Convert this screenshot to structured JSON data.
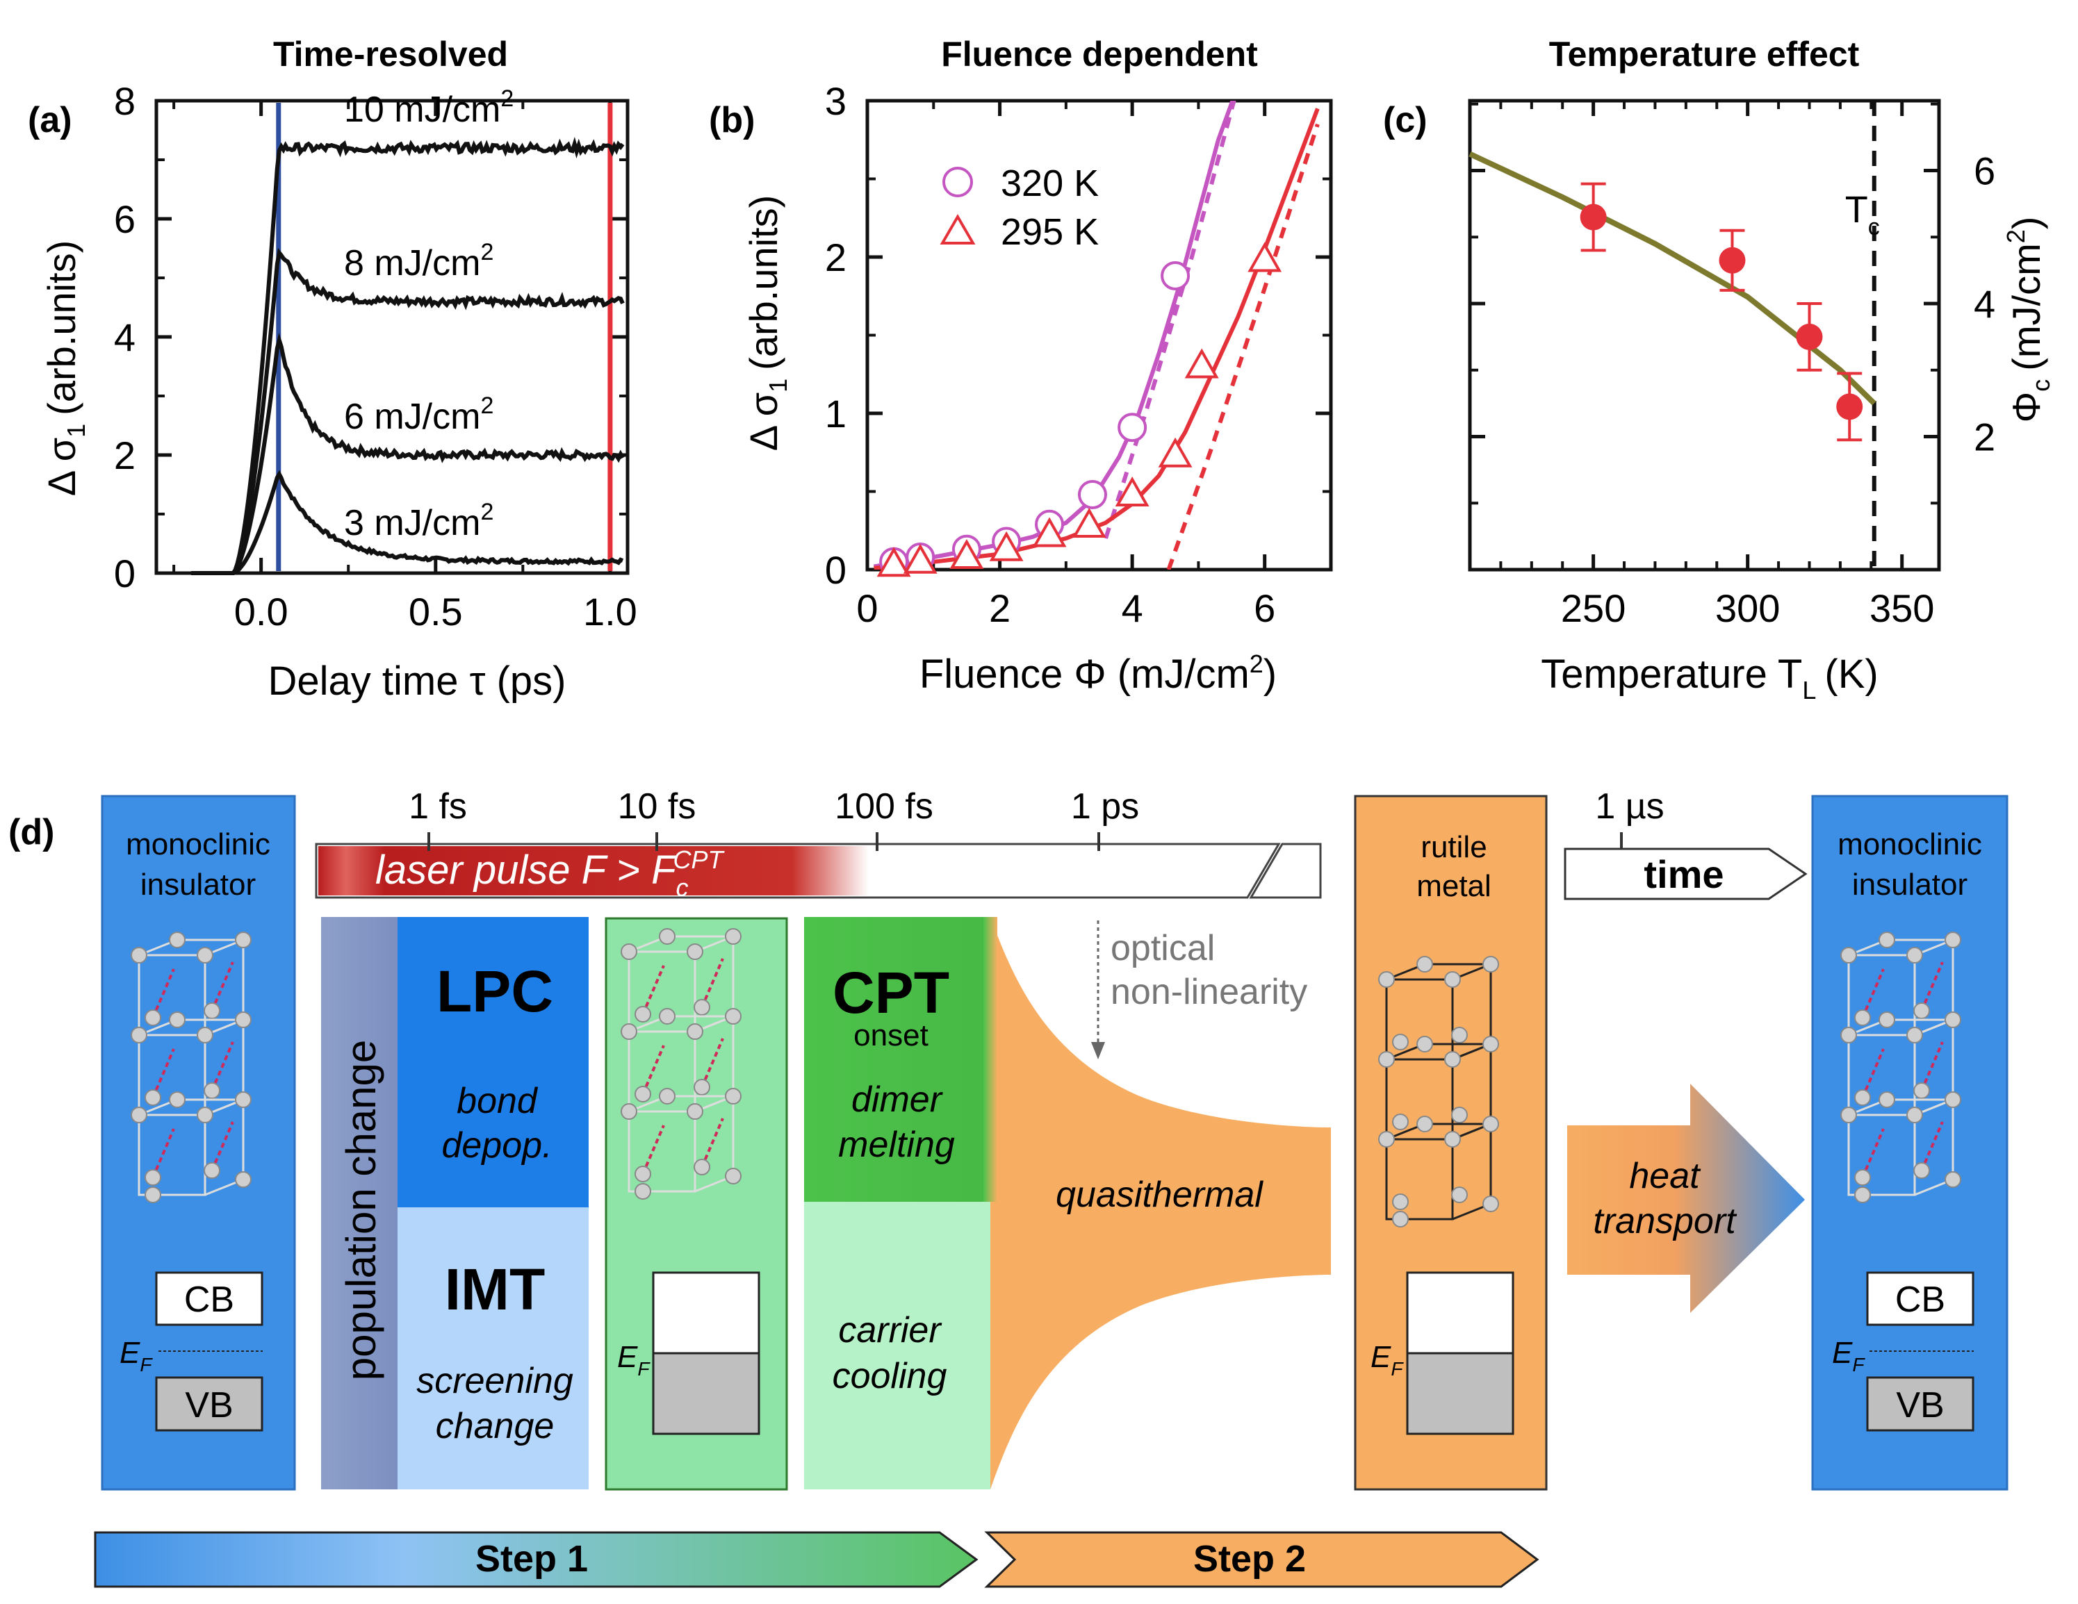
{
  "chart_data": [
    {
      "panel": "(a)",
      "type": "line",
      "title": "Time-resolved",
      "xlabel": "Delay time τ (ps)",
      "ylabel": "Δ σ",
      "ylabel_sub": "1",
      "ylabel_unit": "(arb.units)",
      "xlim": [
        -0.3,
        1.05
      ],
      "ylim": [
        0,
        8
      ],
      "xticks": [
        0.0,
        0.5,
        1.0
      ],
      "xtick_labels": [
        "0.0",
        "0.5",
        "1.0"
      ],
      "yticks": [
        0,
        2,
        4,
        6,
        8
      ],
      "ytick_labels": [
        "0",
        "2",
        "4",
        "6",
        "8"
      ],
      "vlines": [
        {
          "x": 0.05,
          "color": "#2e4fa0"
        },
        {
          "x": 1.0,
          "color": "#e5313a"
        }
      ],
      "series": [
        {
          "name": "3 mJ/cm",
          "sup": "2",
          "peak": 1.7,
          "plateau": 0.2,
          "noise": 0.03
        },
        {
          "name": "6 mJ/cm",
          "sup": "2",
          "peak": 4.0,
          "plateau": 2.0,
          "noise": 0.06
        },
        {
          "name": "8 mJ/cm",
          "sup": "2",
          "peak": 5.5,
          "plateau": 4.6,
          "noise": 0.06
        },
        {
          "name": "10 mJ/cm",
          "sup": "2",
          "peak": 7.2,
          "plateau": 7.2,
          "noise": 0.07
        }
      ]
    },
    {
      "panel": "(b)",
      "type": "scatter",
      "title": "Fluence dependent",
      "xlabel": "Fluence Φ (mJ/cm",
      "xlabel_sup": "2",
      "xlabel_end": ")",
      "ylabel": "Δ σ",
      "ylabel_sub": "1",
      "ylabel_unit": "(arb.units)",
      "xlim": [
        0,
        7
      ],
      "ylim": [
        0,
        3
      ],
      "xticks": [
        0,
        2,
        4,
        6
      ],
      "xtick_labels": [
        "0",
        "2",
        "4",
        "6"
      ],
      "yticks": [
        0,
        1,
        2,
        3
      ],
      "ytick_labels": [
        "0",
        "1",
        "2",
        "3"
      ],
      "series": [
        {
          "name": "320 K",
          "color": "#c455c1",
          "marker": "circle",
          "x": [
            0.4,
            0.8,
            1.5,
            2.1,
            2.75,
            3.4,
            4.0,
            4.65
          ],
          "y": [
            0.05,
            0.08,
            0.13,
            0.18,
            0.29,
            0.48,
            0.91,
            1.88
          ],
          "fit_x": [
            0.1,
            1,
            2,
            2.5,
            3,
            3.4,
            3.8,
            4.1,
            4.4,
            4.7,
            5.0,
            5.3,
            5.6
          ],
          "fit_y": [
            0.02,
            0.08,
            0.16,
            0.21,
            0.3,
            0.45,
            0.72,
            1.0,
            1.38,
            1.8,
            2.28,
            2.75,
            3.1
          ],
          "dash_x": [
            3.6,
            4.2,
            4.9,
            5.6
          ],
          "dash_y": [
            0.2,
            1.0,
            2.0,
            3.1
          ]
        },
        {
          "name": "295 K",
          "color": "#e5313a",
          "marker": "triangle",
          "x": [
            0.4,
            0.8,
            1.5,
            2.1,
            2.75,
            3.35,
            4.0,
            4.65,
            5.05,
            6.0
          ],
          "y": [
            0.03,
            0.05,
            0.08,
            0.13,
            0.22,
            0.28,
            0.48,
            0.73,
            1.3,
            1.98
          ],
          "fit_x": [
            0.1,
            1,
            2,
            3,
            3.6,
            4.0,
            4.4,
            4.8,
            5.2,
            5.6,
            6.0,
            6.4,
            6.8
          ],
          "fit_y": [
            0.01,
            0.05,
            0.1,
            0.2,
            0.3,
            0.42,
            0.6,
            0.88,
            1.25,
            1.62,
            2.05,
            2.5,
            2.95
          ],
          "dash_x": [
            4.55,
            5.2,
            6.0,
            6.8
          ],
          "dash_y": [
            0.0,
            0.78,
            1.8,
            2.85
          ]
        }
      ]
    },
    {
      "panel": "(c)",
      "type": "scatter",
      "title": "Temperature effect",
      "xlabel": "Temperature T",
      "xlabel_sub": "L",
      "xlabel_end": "(K)",
      "ylabel_right": "Φ",
      "ylabel_right_sub": "c",
      "ylabel_right_unit": "(mJ/cm",
      "ylabel_right_sup": "2",
      "ylabel_right_end": ")",
      "xlim": [
        210,
        362
      ],
      "ylim": [
        0,
        7.05
      ],
      "xticks": [
        250,
        300,
        350
      ],
      "xtick_labels": [
        "250",
        "300",
        "350"
      ],
      "yticks": [
        2,
        4,
        6
      ],
      "ytick_labels": [
        "2",
        "4",
        "6"
      ],
      "tc_x": 341,
      "tc_label": "T",
      "tc_sub": "c",
      "points": {
        "x": [
          250,
          295,
          320,
          333
        ],
        "y": [
          5.3,
          4.65,
          3.5,
          2.45
        ],
        "err": [
          0.5,
          0.45,
          0.5,
          0.5
        ],
        "color": "#e5313a"
      },
      "fit": {
        "x": [
          210,
          240,
          270,
          300,
          330,
          341
        ],
        "y": [
          6.25,
          5.6,
          4.9,
          4.1,
          3.0,
          2.5
        ],
        "color": "#7d7a2e"
      }
    }
  ],
  "panel_labels": {
    "a": "(a)",
    "b": "(b)",
    "c": "(c)",
    "d": "(d)"
  },
  "diagram": {
    "time_ticks": [
      "1 fs",
      "10 fs",
      "100 fs",
      "1 ps",
      "1 µs"
    ],
    "laser": {
      "text": "laser pulse F > F",
      "sub": "c",
      "sup": "CPT"
    },
    "time_label": "time",
    "left_phase": {
      "line1": "monoclinic",
      "line2": "insulator"
    },
    "right_phase": {
      "line1": "monoclinic",
      "line2": "insulator"
    },
    "metal_phase": {
      "line1": "rutile",
      "line2": "metal"
    },
    "cb": "CB",
    "vb": "VB",
    "ef": "E",
    "ef_sub": "F",
    "population_change": "population change",
    "lpc": {
      "title": "LPC",
      "line1": "bond",
      "line2": "depop."
    },
    "imt": {
      "title": "IMT",
      "line1": "screening",
      "line2": "change"
    },
    "cpt": {
      "title": "CPT",
      "onset": "onset",
      "line1": "dimer",
      "line2": "melting"
    },
    "carrier": {
      "line1": "carrier",
      "line2": "cooling"
    },
    "optical": {
      "line1": "optical",
      "line2": "non-linearity"
    },
    "quasithermal": "quasithermal",
    "heat": {
      "line1": "heat",
      "line2": "transport"
    },
    "step1": "Step 1",
    "step2": "Step 2"
  }
}
